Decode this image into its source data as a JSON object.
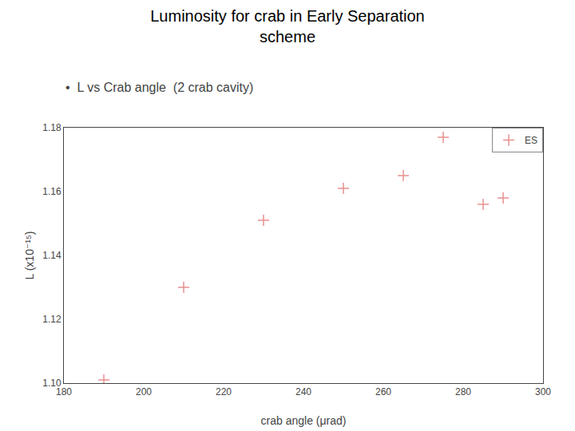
{
  "chart_data": {
    "type": "scatter",
    "title": "Luminosity for crab in Early Separation\nscheme",
    "annotations": [
      "•  L vs Crab angle  (2 crab cavity)"
    ],
    "x_label": "crab angle (μrad)",
    "y_label": "L (x10⁻¹⁵)",
    "x": [
      190,
      210,
      230,
      250,
      265,
      275,
      285,
      290
    ],
    "series": [
      {
        "name": "ES",
        "color": "#e89090",
        "marker": "plus",
        "values": [
          1.101,
          1.13,
          1.151,
          1.161,
          1.165,
          1.177,
          1.156,
          1.158
        ]
      }
    ],
    "xlim": [
      180,
      300
    ],
    "ylim": [
      1.1,
      1.18
    ],
    "xticks": [
      180,
      200,
      220,
      240,
      260,
      280,
      300
    ],
    "yticks": [
      {
        "value": 1.1,
        "label": "1.10"
      },
      1.12,
      1.14,
      1.16,
      1.18
    ],
    "grid": false,
    "legend": "upper right"
  }
}
